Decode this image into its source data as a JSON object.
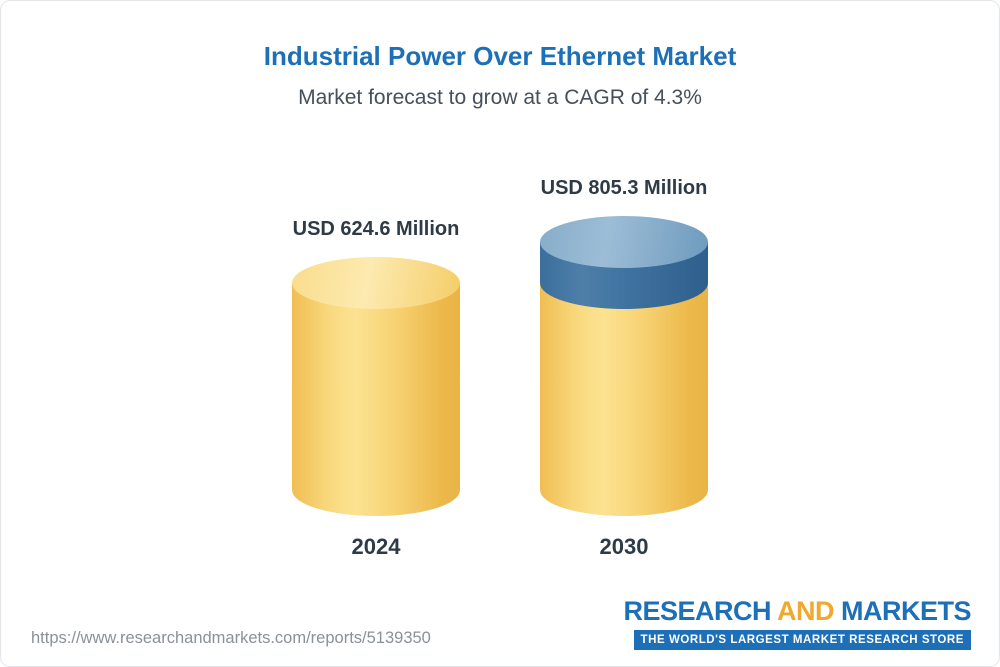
{
  "header": {
    "title": "Industrial Power Over Ethernet Market",
    "subtitle": "Market forecast to grow at a CAGR of 4.3%"
  },
  "chart_data": {
    "type": "bar",
    "style": "3d-cylinder",
    "title": "Industrial Power Over Ethernet Market",
    "subtitle": "Market forecast to grow at a CAGR of 4.3%",
    "cagr_percent": 4.3,
    "unit": "USD Million",
    "categories": [
      "2024",
      "2030"
    ],
    "values": [
      624.6,
      805.3
    ],
    "value_labels": [
      "USD 624.6 Million",
      "USD 805.3 Million"
    ],
    "segments": [
      [
        624.6
      ],
      [
        624.6,
        180.7
      ]
    ],
    "segment_colors": [
      [
        "gold"
      ],
      [
        "gold",
        "blue"
      ]
    ],
    "colors": {
      "gold": "#f7d272",
      "blue": "#3f719f"
    },
    "legend": "none",
    "grid": false
  },
  "footer": {
    "url": "https://www.researchandmarkets.com/reports/5139350",
    "logo": {
      "part1": "RESEARCH ",
      "part2": "AND",
      "part3": " MARKETS",
      "tagline": "THE WORLD'S LARGEST MARKET RESEARCH STORE"
    }
  }
}
